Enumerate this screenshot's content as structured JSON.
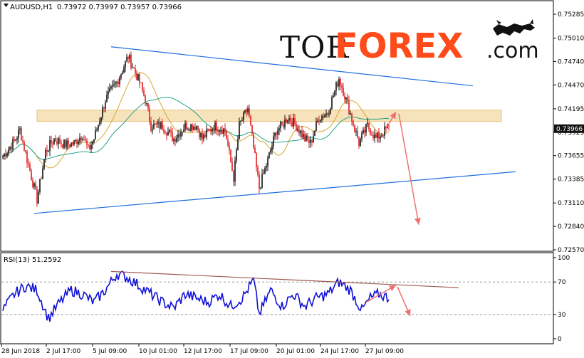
{
  "header": {
    "symbol": "AUDUSD,H1",
    "ohlc": "0.73972 0.73997 0.73957 0.73966"
  },
  "logo": {
    "part1": "TOR",
    "part2": "FOREX",
    "part3": ".com",
    "icon": "bull-bear-icon"
  },
  "indicator": {
    "label": "RSI(13) 51.2592"
  },
  "colors": {
    "candle_up": "#111111",
    "candle_down": "#e01c1c",
    "ma_fast": "#d9a52c",
    "ma_slow": "#24a38a",
    "trendline": "#1f6fe0",
    "resistance_zone": "#f5dfb0",
    "arrow": "#f07070",
    "rsi_line": "#1010d8",
    "rsi_trend": "#a05a50",
    "current_price_bg": "#111111"
  },
  "chart_data": [
    {
      "type": "candlestick",
      "title": "AUDUSD,H1",
      "current_price": "0.73966",
      "y_ticks": [
        "0.75285",
        "0.75010",
        "0.74740",
        "0.74470",
        "0.74195",
        "0.73925",
        "0.73655",
        "0.73385",
        "0.73110",
        "0.72840",
        "0.72570"
      ],
      "x_ticks": [
        "28 Jun 2018",
        "2 Jul 17:00",
        "5 Jul 09:00",
        "10 Jul 01:00",
        "12 Jul 17:00",
        "17 Jul 09:00",
        "20 Jul 01:00",
        "24 Jul 17:00",
        "27 Jul 09:00"
      ],
      "ylim": [
        0.7257,
        0.7537
      ],
      "key_points": {
        "x_index": [
          0,
          8,
          12,
          16,
          24,
          30,
          36,
          44,
          50,
          56,
          60,
          64,
          72,
          80,
          88,
          96,
          100,
          104,
          112,
          120,
          128,
          136,
          140,
          148,
          156,
          162,
          166,
          172,
          180,
          186,
          192,
          196,
          200,
          206,
          212,
          216,
          222,
          228,
          236,
          242,
          250,
          256,
          262,
          270
        ],
        "close": [
          0.7365,
          0.7382,
          0.7395,
          0.7368,
          0.7315,
          0.737,
          0.7385,
          0.7378,
          0.738,
          0.739,
          0.7372,
          0.7385,
          0.743,
          0.745,
          0.748,
          0.745,
          0.743,
          0.74,
          0.74,
          0.7385,
          0.74,
          0.74,
          0.7385,
          0.74,
          0.7395,
          0.734,
          0.74,
          0.742,
          0.7328,
          0.736,
          0.7395,
          0.74,
          0.741,
          0.74,
          0.7385,
          0.738,
          0.741,
          0.7415,
          0.7455,
          0.7425,
          0.738,
          0.74,
          0.7385,
          0.7397
        ]
      },
      "resistance_zone": [
        0.7405,
        0.7418
      ],
      "upper_trendline": [
        {
          "x_index": 76,
          "price": 0.7491
        },
        {
          "x_index": 330,
          "price": 0.7446
        }
      ],
      "lower_trendline": [
        {
          "x_index": 22,
          "price": 0.7299
        },
        {
          "x_index": 360,
          "price": 0.7347
        }
      ],
      "forecast_arrows": [
        {
          "from_x_index": 268,
          "from_price": 0.7394,
          "to_x_index": 276,
          "to_price": 0.7416
        },
        {
          "from_x_index": 278,
          "from_price": 0.7414,
          "to_x_index": 292,
          "to_price": 0.7286
        }
      ]
    },
    {
      "type": "line",
      "title": "RSI(13) 51.2592",
      "y_ticks": [
        "100",
        "70",
        "30",
        "0"
      ],
      "ylim": [
        0,
        100
      ],
      "levels": [
        70,
        30
      ],
      "key_points": {
        "x_index": [
          0,
          8,
          16,
          24,
          32,
          40,
          48,
          56,
          64,
          72,
          80,
          88,
          96,
          104,
          112,
          120,
          128,
          136,
          144,
          152,
          160,
          168,
          176,
          180,
          188,
          196,
          204,
          212,
          220,
          228,
          236,
          244,
          252,
          258,
          264,
          270
        ],
        "value": [
          35,
          55,
          65,
          60,
          25,
          45,
          60,
          55,
          45,
          60,
          80,
          75,
          65,
          55,
          45,
          38,
          55,
          50,
          45,
          55,
          40,
          50,
          72,
          30,
          60,
          40,
          55,
          40,
          50,
          55,
          70,
          60,
          35,
          50,
          55,
          51
        ]
      },
      "trendline": [
        {
          "x_index": 76,
          "value": 83
        },
        {
          "x_index": 320,
          "value": 63
        }
      ],
      "forecast_arrows": [
        {
          "from_x_index": 255,
          "from_value": 45,
          "to_x_index": 276,
          "to_value": 66
        },
        {
          "from_x_index": 277,
          "from_value": 64,
          "to_x_index": 286,
          "to_value": 28
        }
      ]
    }
  ]
}
